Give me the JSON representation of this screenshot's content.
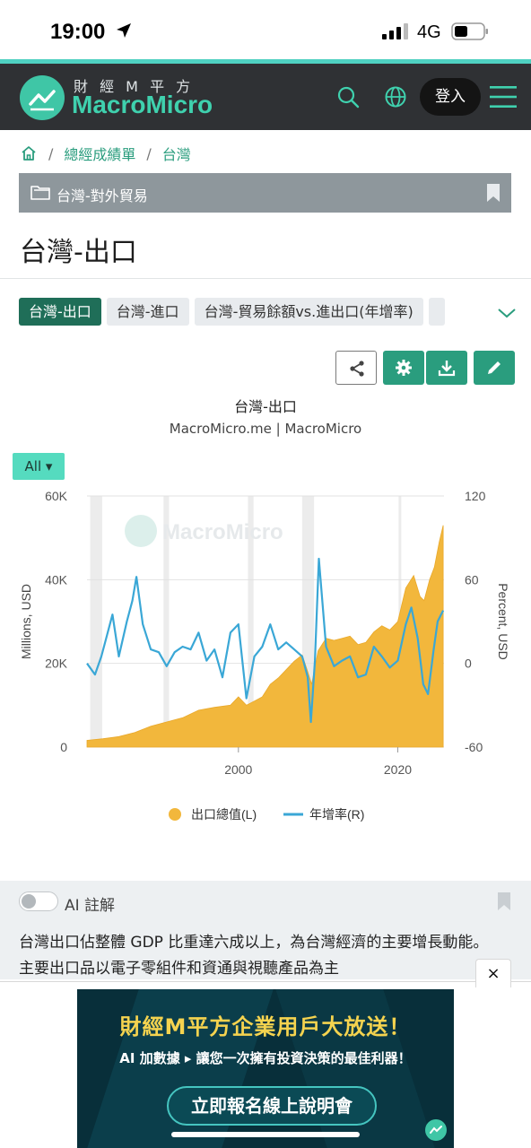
{
  "status_bar": {
    "time": "19:00",
    "network": "4G"
  },
  "header": {
    "logo_top": "財 經 M 平 方",
    "logo_main": "MacroMicro",
    "login_label": "登入"
  },
  "breadcrumb": {
    "items": [
      "總經成績單",
      "台灣"
    ]
  },
  "folder": {
    "label": "台灣-對外貿易"
  },
  "page_title": "台灣-出口",
  "tabs": [
    "台灣-出口",
    "台灣-進口",
    "台灣-貿易餘額vs.進出口(年增率)"
  ],
  "chart_header": {
    "title": "台灣-出口",
    "subtitle": "MacroMicro.me | MacroMicro"
  },
  "range_selector": {
    "label": "All ▾"
  },
  "chart_data": {
    "type": "area+line",
    "watermark": "MacroMicro",
    "ylabel_left": "Millions, USD",
    "ylabel_right": "Percent, USD",
    "ylim_left": [
      0,
      60000
    ],
    "ylim_right": [
      -60,
      120
    ],
    "yticks_left": [
      "0",
      "20K",
      "40K",
      "60K"
    ],
    "yticks_right": [
      "-60",
      "0",
      "60",
      "120"
    ],
    "xticks": [
      {
        "x": 2000,
        "label": "2000"
      },
      {
        "x": 2020,
        "label": "2020"
      }
    ],
    "xlim": [
      1981,
      2025.8
    ],
    "recession_bands": [
      [
        1981.4,
        1982.9
      ],
      [
        1990.6,
        1991.3
      ],
      [
        2001.2,
        2001.9
      ],
      [
        2008.0,
        2009.5
      ],
      [
        2020.1,
        2020.4
      ]
    ],
    "grid": true,
    "legend_position": "bottom",
    "series": [
      {
        "name": "出口總值(L)",
        "axis": "left",
        "color": "#f2b73c",
        "x": [
          1981,
          1983,
          1985,
          1987,
          1989,
          1991,
          1993,
          1995,
          1997,
          1999,
          2000,
          2001,
          2002,
          2003,
          2004,
          2005,
          2006,
          2007,
          2008,
          2008.7,
          2009.2,
          2010,
          2011,
          2012,
          2013,
          2014,
          2015,
          2016,
          2017,
          2018,
          2019,
          2020,
          2021,
          2022,
          2022.8,
          2023.3,
          2024,
          2024.6,
          2025.2,
          2025.7
        ],
        "values": [
          1600,
          2000,
          2500,
          3500,
          5000,
          6000,
          7000,
          8800,
          9500,
          10000,
          12000,
          10000,
          11000,
          12000,
          15000,
          16500,
          18500,
          20500,
          22000,
          18000,
          15000,
          23000,
          26000,
          25500,
          26000,
          26500,
          24500,
          25000,
          27500,
          29000,
          28000,
          30000,
          38000,
          41000,
          36000,
          35000,
          40000,
          43000,
          49000,
          53000
        ]
      },
      {
        "name": "年增率(R)",
        "axis": "right",
        "color": "#3aa7d6",
        "x": [
          1981,
          1982,
          1982.8,
          1983.5,
          1984.2,
          1985,
          1986,
          1986.7,
          1987.2,
          1988,
          1989,
          1990,
          1991,
          1992,
          1993,
          1994,
          1995,
          1996,
          1997,
          1998,
          1999,
          2000,
          2001,
          2002,
          2003,
          2004,
          2005,
          2006,
          2007,
          2008,
          2008.7,
          2009.1,
          2009.6,
          2010.1,
          2011,
          2012,
          2013,
          2014,
          2015,
          2016,
          2017,
          2018,
          2019,
          2020,
          2021,
          2021.7,
          2022.5,
          2023.2,
          2023.8,
          2024.5,
          2025,
          2025.7
        ],
        "values": [
          0,
          -8,
          5,
          20,
          35,
          5,
          30,
          45,
          62,
          28,
          10,
          8,
          -2,
          8,
          12,
          10,
          22,
          2,
          10,
          -10,
          22,
          28,
          -25,
          5,
          12,
          28,
          10,
          15,
          10,
          5,
          -10,
          -42,
          2,
          75,
          12,
          -2,
          2,
          5,
          -10,
          -8,
          12,
          5,
          -3,
          2,
          28,
          40,
          18,
          -15,
          -22,
          10,
          30,
          38
        ]
      }
    ]
  },
  "legend": {
    "area_label": "出口總值(L)",
    "line_label": "年增率(R)"
  },
  "ai_note": {
    "label": "AI 註解",
    "text": "台灣出口佔整體 GDP 比重達六成以上，為台灣經濟的主要增長動能。主要出口品以電子零組件和資通與視聽產品為主"
  },
  "ad": {
    "close_label": "×",
    "headline": "財經M平方企業用戶大放送！",
    "subline": "AI 加數據 ▸ 讓您一次擁有投資決策的最佳利器！",
    "cta": "立即報名線上說明會"
  },
  "colors": {
    "brand_green": "#2a9d7e",
    "brand_teal": "#3fd1ae",
    "header_bg": "#2f3134",
    "area": "#f2b73c",
    "line": "#3aa7d6"
  },
  "icons": [
    "location-arrow-icon",
    "signal-icon",
    "battery-icon",
    "logo-icon",
    "search-icon",
    "globe-icon",
    "menu-icon",
    "home-icon",
    "folder-icon",
    "bookmark-icon",
    "chevron-down-icon",
    "share-icon",
    "settings-icon",
    "download-icon",
    "edit-icon"
  ]
}
